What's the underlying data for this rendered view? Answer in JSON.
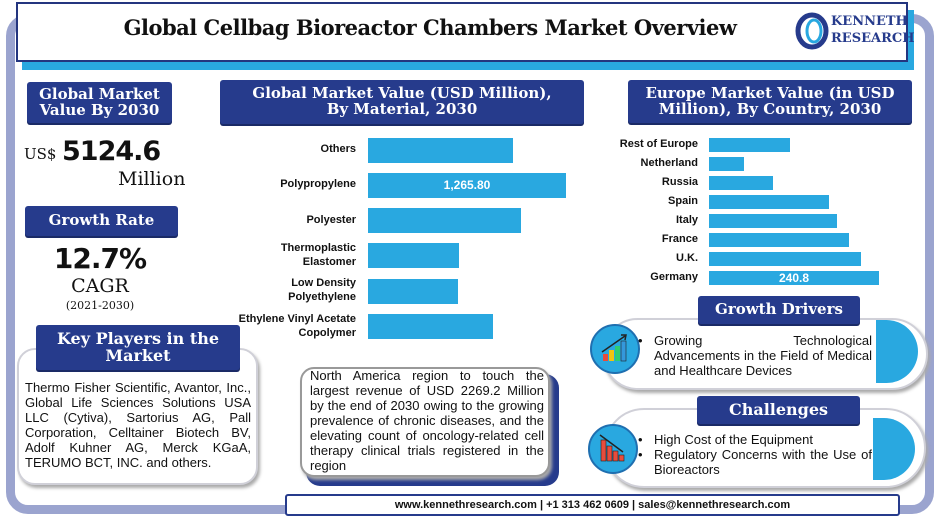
{
  "header": {
    "title": "Global Cellbag Bioreactor Chambers Market Overview",
    "logo_line1": "KENNETH",
    "logo_line2": "RESEARCH"
  },
  "market_value": {
    "heading": "Global Market Value By 2030",
    "currency": "US$",
    "value": "5124.6",
    "unit": "Million"
  },
  "growth": {
    "heading": "Growth Rate",
    "value": "12.7%",
    "label": "CAGR",
    "period": "(2021-2030)"
  },
  "key_players": {
    "heading": "Key Players in the Market",
    "text": "Thermo Fisher Scientific, Avantor, Inc., Global Life Sciences Solutions USA LLC (Cytiva), Sartorius AG, Pall Corporation, Celltainer Biotech BV, Adolf Kuhner AG, Merck KGaA, TERUMO BCT, INC. and others."
  },
  "north_america": {
    "text": "North America region to touch the largest revenue of USD 2269.2 Million by the end of 2030 owing to the growing prevalence of chronic diseases, and the elevating count of oncology-related cell therapy clinical trials registered in the region"
  },
  "growth_drivers": {
    "heading": "Growth Drivers",
    "items": [
      "Growing Technological Advancements in the Field of Medical and Healthcare Devices"
    ],
    "icon": "rising-bar-chart-icon"
  },
  "challenges": {
    "heading": "Challenges",
    "items": [
      "High Cost of the Equipment",
      "Regulatory Concerns with the Use of Bioreactors"
    ],
    "icon": "falling-bar-chart-icon"
  },
  "footer": {
    "text": "www.kennethresearch.com | +1 313 462 0609 | sales@kennethresearch.com"
  },
  "colors": {
    "navy": "#263b8c",
    "bar": "#29a8e0",
    "frame": "#9ba4cf"
  },
  "chart_data": [
    {
      "type": "bar",
      "orientation": "horizontal",
      "title": "Global Market Value (USD Million), By Material, 2030",
      "categories": [
        "Others",
        "Polypropylene",
        "Polyester",
        "Thermoplastic Elastomer",
        "Low Density Polyethylene",
        "Ethylene Vinyl Acetate Copolymer"
      ],
      "values": [
        927,
        1265.8,
        978,
        582,
        575,
        799
      ],
      "data_labels": [
        "",
        "1,265.80",
        "",
        "",
        "",
        ""
      ],
      "grid": false,
      "xlim": [
        0,
        1265.8
      ]
    },
    {
      "type": "bar",
      "orientation": "horizontal",
      "title": "Europe Market Value (in USD Million), By Country, 2030",
      "categories": [
        "Rest of Europe",
        "Netherland",
        "Russia",
        "Spain",
        "Italy",
        "France",
        "U.K.",
        "Germany"
      ],
      "values": [
        115,
        50,
        91,
        170,
        181,
        198,
        215,
        240.8
      ],
      "data_labels": [
        "",
        "",
        "",
        "",
        "",
        "",
        "",
        "240.8"
      ],
      "grid": false,
      "xlim": [
        0,
        240.8
      ]
    }
  ]
}
